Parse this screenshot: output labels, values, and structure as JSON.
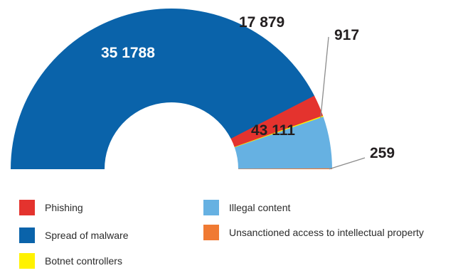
{
  "chart_data": {
    "type": "pie",
    "variant": "semi-donut",
    "title": "",
    "segments": [
      {
        "name": "Spread of malware",
        "value": 351788,
        "label": "35 1788",
        "color": "#0A63AA",
        "label_text_color": "#FFFFFF"
      },
      {
        "name": "Phishing",
        "value": 17879,
        "label": "17 879",
        "color": "#E4332E",
        "label_text_color": "#231F20"
      },
      {
        "name": "Botnet controllers",
        "value": 917,
        "label": "917",
        "color": "#FFF200",
        "label_text_color": "#231F20"
      },
      {
        "name": "Illegal content",
        "value": 43111,
        "label": "43 111",
        "color": "#66B1E2",
        "label_text_color": "#231F20"
      },
      {
        "name": "Unsanctioned access to intellectual property",
        "value": 259,
        "label": "259",
        "color": "#F07A33",
        "label_text_color": "#231F20"
      }
    ],
    "legend": {
      "placement": "bottom",
      "entries": [
        {
          "name": "Phishing",
          "color": "#E4332E"
        },
        {
          "name": "Spread of malware",
          "color": "#0A63AA"
        },
        {
          "name": "Botnet controllers",
          "color": "#FFF200"
        },
        {
          "name": "Illegal content",
          "color": "#66B1E2"
        },
        {
          "name": "Unsanctioned access to intellectual property",
          "color": "#F07A33"
        }
      ]
    }
  }
}
